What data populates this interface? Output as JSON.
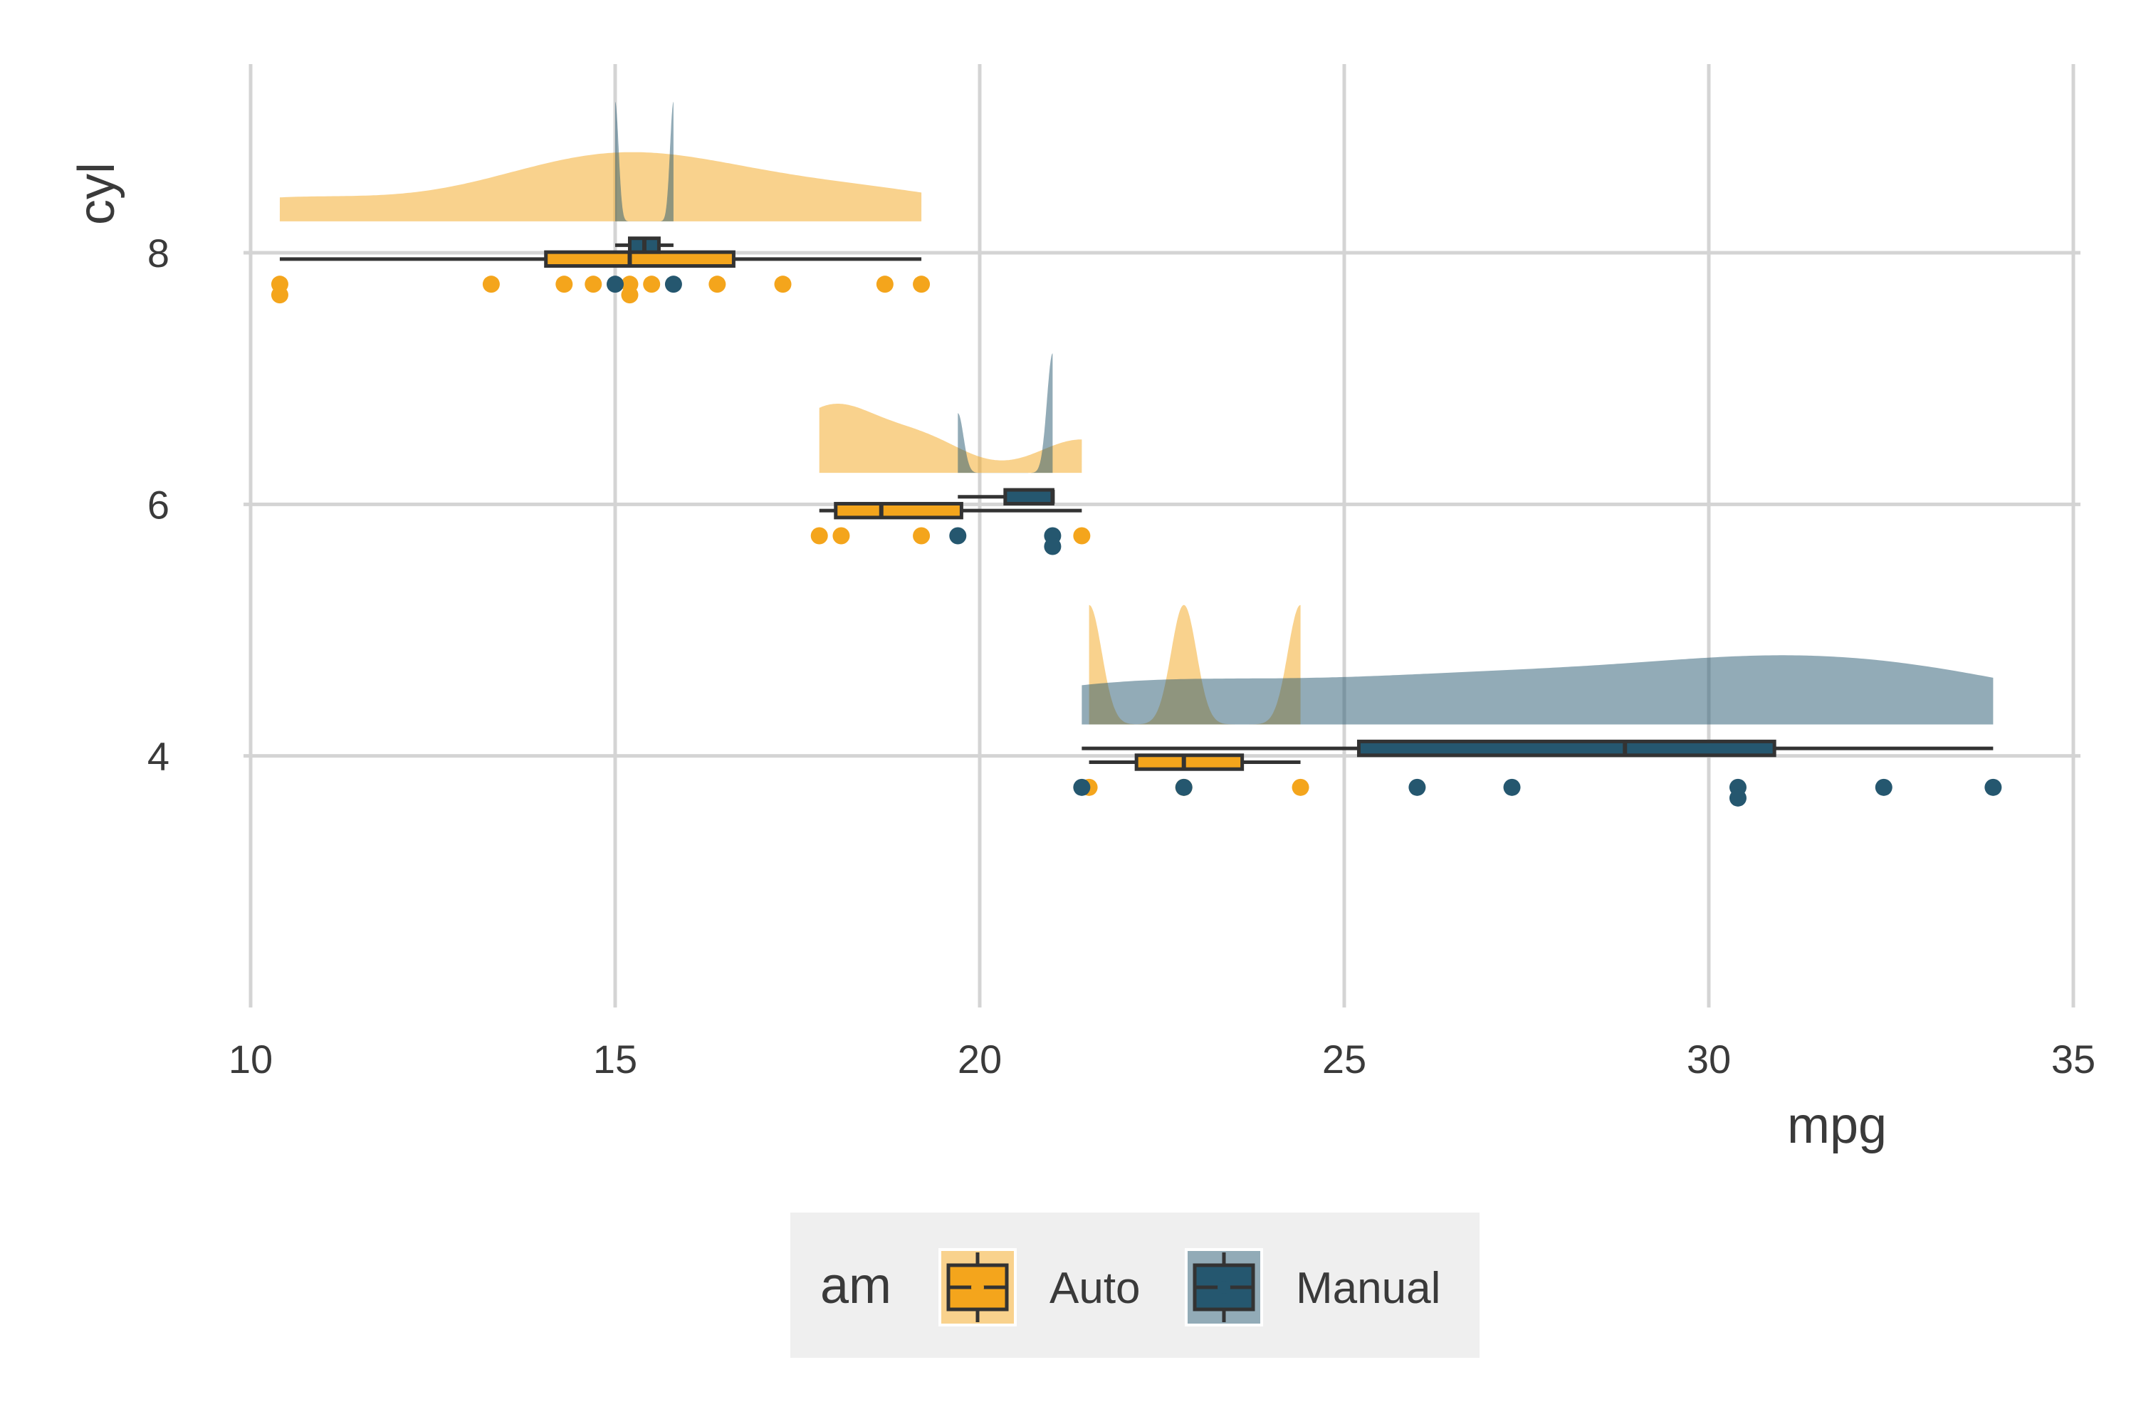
{
  "chart_data": {
    "type": "raincloud",
    "title": "",
    "xlabel": "mpg",
    "ylabel": "cyl",
    "xlim": [
      10,
      35
    ],
    "ylim": [
      2,
      9.5
    ],
    "x_ticks": [
      10,
      15,
      20,
      25,
      30,
      35
    ],
    "y_ticks": [
      4,
      6,
      8
    ],
    "grid": true,
    "legend": {
      "title": "am",
      "position": "bottom",
      "entries": [
        {
          "name": "Auto",
          "color": "#F4A51C"
        },
        {
          "name": "Manual",
          "color": "#25576F"
        }
      ]
    },
    "series": [
      {
        "name": "Auto",
        "color": "#F4A51C",
        "groups": [
          {
            "cyl": 8,
            "points": [
              10.4,
              10.4,
              13.3,
              14.3,
              14.7,
              15.2,
              15.2,
              15.5,
              16.4,
              17.3,
              18.7,
              19.2
            ],
            "box": {
              "min": 10.4,
              "q1": 14.05,
              "median": 15.2,
              "q3": 16.625,
              "max": 19.2
            }
          },
          {
            "cyl": 6,
            "points": [
              17.8,
              18.1,
              19.2,
              21.4
            ],
            "box": {
              "min": 17.8,
              "q1": 18.025,
              "median": 18.65,
              "q3": 19.75,
              "max": 21.4
            }
          },
          {
            "cyl": 4,
            "points": [
              21.5,
              22.8,
              24.4
            ],
            "box": {
              "min": 21.5,
              "q1": 22.15,
              "median": 22.8,
              "q3": 23.6,
              "max": 24.4
            }
          }
        ]
      },
      {
        "name": "Manual",
        "color": "#25576F",
        "groups": [
          {
            "cyl": 8,
            "points": [
              15.0,
              15.8
            ],
            "box": {
              "min": 15.0,
              "q1": 15.2,
              "median": 15.4,
              "q3": 15.6,
              "max": 15.8
            }
          },
          {
            "cyl": 6,
            "points": [
              19.7,
              21.0,
              21.0
            ],
            "box": {
              "min": 19.7,
              "q1": 20.35,
              "median": 21.0,
              "q3": 21.0,
              "max": 21.0
            }
          },
          {
            "cyl": 4,
            "points": [
              21.4,
              22.8,
              26.0,
              27.3,
              30.4,
              30.4,
              32.4,
              33.9
            ],
            "box": {
              "min": 21.4,
              "q1": 25.2,
              "median": 28.85,
              "q3": 30.9,
              "max": 33.9
            }
          }
        ]
      }
    ]
  }
}
